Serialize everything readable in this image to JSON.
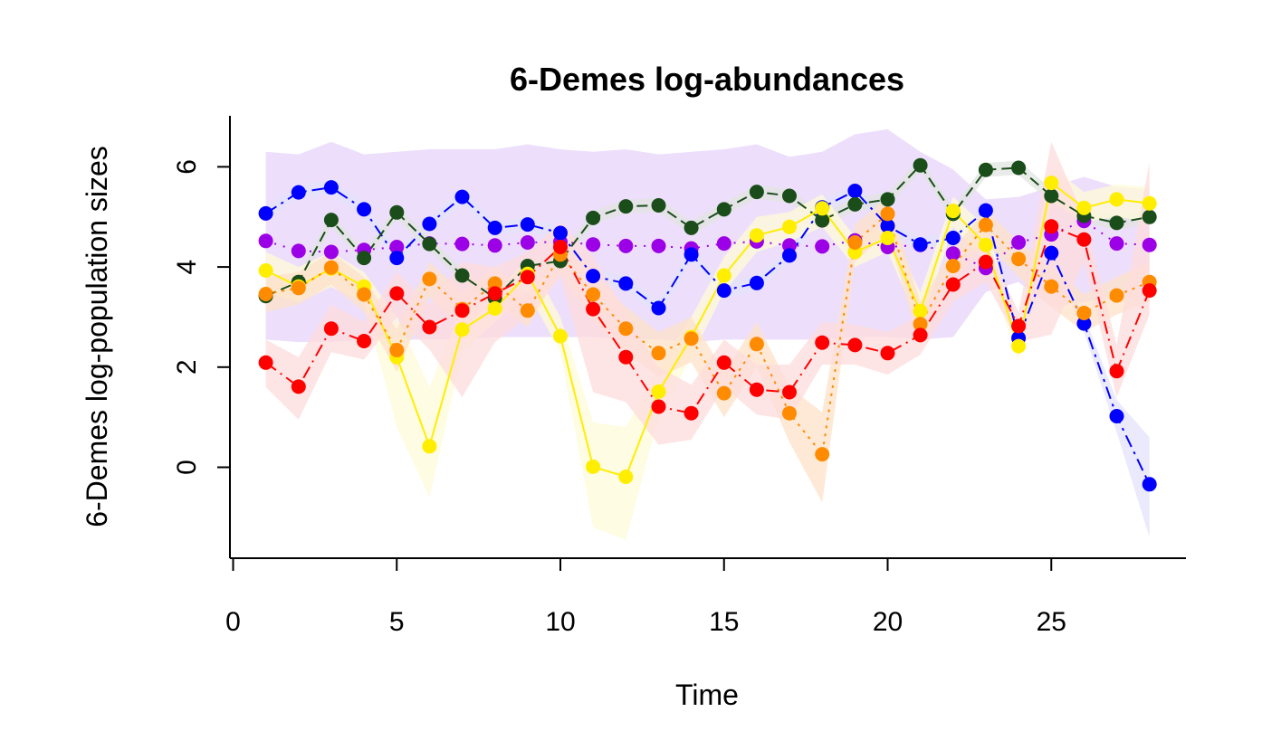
{
  "chart_data": {
    "type": "line",
    "title": "6-Demes log-abundances",
    "xlabel": "Time",
    "ylabel": "6-Demes log-population sizes",
    "xlim": [
      1,
      28
    ],
    "ylim": [
      -1.7,
      7.0
    ],
    "x_ticks": [
      0,
      5,
      10,
      15,
      20,
      25
    ],
    "y_ticks": [
      0,
      2,
      4,
      6
    ],
    "x": [
      1,
      2,
      3,
      4,
      5,
      6,
      7,
      8,
      9,
      10,
      11,
      12,
      13,
      14,
      15,
      16,
      17,
      18,
      19,
      20,
      21,
      22,
      23,
      24,
      25,
      26,
      27,
      28
    ],
    "series": [
      {
        "color": "#9b00e6",
        "band_color": "#e7d4fb",
        "dash": "2,8",
        "values": [
          4.52,
          4.32,
          4.3,
          4.34,
          4.4,
          4.47,
          4.46,
          4.43,
          4.49,
          4.5,
          4.45,
          4.42,
          4.42,
          4.37,
          4.47,
          4.51,
          4.43,
          4.41,
          4.53,
          4.4,
          4.44,
          4.27,
          3.98,
          4.49,
          4.65,
          4.92,
          4.47,
          4.44
        ],
        "lower": [
          2.55,
          2.5,
          2.5,
          2.55,
          2.55,
          2.55,
          2.55,
          2.6,
          2.6,
          2.6,
          2.6,
          2.55,
          2.55,
          2.5,
          2.55,
          2.55,
          2.55,
          2.55,
          2.6,
          2.6,
          2.55,
          2.6,
          3.5,
          3.7,
          3.2,
          3.3,
          3.4,
          3.3
        ],
        "upper": [
          6.3,
          6.25,
          6.5,
          6.25,
          6.3,
          6.35,
          6.35,
          6.35,
          6.45,
          6.35,
          6.3,
          6.35,
          6.25,
          6.3,
          6.35,
          6.45,
          6.2,
          6.3,
          6.65,
          6.75,
          6.3,
          5.95,
          5.35,
          5.4,
          5.6,
          5.8,
          5.6,
          5.55
        ]
      },
      {
        "color": "#0000ff",
        "band_color": "#e3e3fb",
        "dash": "14,6,3,6",
        "values": [
          5.07,
          5.49,
          5.59,
          5.15,
          4.18,
          4.86,
          5.4,
          4.78,
          4.85,
          4.68,
          3.82,
          3.67,
          3.18,
          4.25,
          3.53,
          3.68,
          4.23,
          5.19,
          5.52,
          4.82,
          4.45,
          4.58,
          5.13,
          2.58,
          4.28,
          2.87,
          1.02,
          -0.34
        ],
        "lower": [
          4.95,
          5.37,
          5.45,
          5.0,
          4.05,
          4.72,
          5.25,
          4.65,
          4.72,
          4.55,
          3.68,
          3.52,
          3.02,
          4.1,
          3.38,
          3.52,
          4.1,
          5.05,
          5.38,
          4.7,
          4.32,
          4.45,
          4.98,
          2.4,
          4.12,
          2.7,
          0.7,
          -1.4
        ],
        "upper": [
          5.2,
          5.62,
          5.73,
          5.3,
          4.32,
          5.0,
          5.55,
          4.92,
          4.98,
          4.82,
          3.96,
          3.82,
          3.34,
          4.4,
          3.68,
          3.84,
          4.36,
          5.33,
          5.66,
          4.96,
          4.58,
          4.72,
          5.28,
          2.76,
          4.44,
          3.04,
          1.34,
          0.6
        ]
      },
      {
        "color": "#1a4d1a",
        "band_color": "#e2e4e2",
        "dash": "12,6",
        "values": [
          3.42,
          3.7,
          4.94,
          4.18,
          5.09,
          4.46,
          3.83,
          3.38,
          4.02,
          4.12,
          4.98,
          5.21,
          5.23,
          4.78,
          5.15,
          5.5,
          5.42,
          4.93,
          5.25,
          5.35,
          6.03,
          5.06,
          5.94,
          5.98,
          5.42,
          5.02,
          4.88,
          5.0
        ],
        "lower": [
          3.28,
          3.56,
          4.8,
          4.04,
          4.95,
          4.32,
          3.69,
          3.24,
          3.88,
          3.98,
          4.84,
          5.07,
          5.09,
          4.64,
          5.01,
          5.36,
          5.28,
          4.79,
          5.11,
          5.21,
          5.89,
          4.92,
          5.8,
          5.84,
          5.28,
          4.88,
          4.74,
          4.86
        ],
        "upper": [
          3.56,
          3.84,
          5.08,
          4.32,
          5.23,
          4.6,
          3.97,
          3.52,
          4.16,
          4.26,
          5.12,
          5.35,
          5.37,
          4.92,
          5.29,
          5.64,
          5.56,
          5.07,
          5.39,
          5.49,
          6.17,
          5.2,
          6.08,
          6.12,
          5.56,
          5.16,
          5.02,
          5.14
        ]
      },
      {
        "color": "#ffee00",
        "band_color": "#fdfbd8",
        "dash": "none",
        "values": [
          3.93,
          3.61,
          3.97,
          3.61,
          2.2,
          0.42,
          2.75,
          3.17,
          3.86,
          2.62,
          0.01,
          -0.19,
          1.51,
          2.6,
          3.83,
          4.63,
          4.8,
          5.17,
          4.3,
          4.58,
          3.12,
          5.12,
          4.44,
          2.42,
          5.68,
          5.18,
          5.35,
          5.27
        ],
        "lower": [
          3.5,
          3.3,
          3.6,
          3.3,
          0.8,
          -0.6,
          2.3,
          2.9,
          3.5,
          2.3,
          -1.2,
          -1.45,
          1.0,
          2.2,
          3.5,
          4.3,
          4.5,
          4.8,
          4.0,
          4.3,
          2.8,
          4.8,
          4.1,
          2.1,
          5.3,
          4.9,
          5.0,
          4.9
        ],
        "upper": [
          4.3,
          4.0,
          4.3,
          3.9,
          3.0,
          1.6,
          3.2,
          3.45,
          4.2,
          3.0,
          0.9,
          0.8,
          2.0,
          3.0,
          4.2,
          5.0,
          5.1,
          5.45,
          4.6,
          4.85,
          3.5,
          5.4,
          4.8,
          2.8,
          6.0,
          5.5,
          5.65,
          5.6
        ]
      },
      {
        "color": "#ff8c00",
        "band_color": "#fde2c8",
        "dash": "3,6",
        "values": [
          3.46,
          3.58,
          3.99,
          3.45,
          2.34,
          3.76,
          3.16,
          3.67,
          3.13,
          4.25,
          3.45,
          2.77,
          2.28,
          2.57,
          1.48,
          2.46,
          1.08,
          0.26,
          4.49,
          5.06,
          2.86,
          4.02,
          4.84,
          4.16,
          3.61,
          3.08,
          3.43,
          3.7
        ],
        "lower": [
          3.1,
          3.25,
          3.65,
          3.1,
          1.9,
          3.4,
          2.8,
          3.3,
          2.8,
          3.9,
          2.9,
          2.3,
          1.8,
          2.1,
          1.0,
          2.0,
          0.5,
          -0.7,
          4.1,
          4.7,
          2.4,
          3.7,
          4.5,
          3.8,
          3.2,
          2.7,
          3.05,
          3.3
        ],
        "upper": [
          3.8,
          3.9,
          4.3,
          3.8,
          2.75,
          4.1,
          3.5,
          4.0,
          3.45,
          4.6,
          3.9,
          3.2,
          2.7,
          3.0,
          1.9,
          2.9,
          1.6,
          1.1,
          4.85,
          5.4,
          3.3,
          4.35,
          5.15,
          4.5,
          4.0,
          3.45,
          3.8,
          4.1
        ]
      },
      {
        "color": "#ff0000",
        "band_color": "#fddcdc",
        "dash": "14,6,2,6",
        "values": [
          2.09,
          1.61,
          2.77,
          2.52,
          3.47,
          2.8,
          3.13,
          3.47,
          3.8,
          4.4,
          3.16,
          2.2,
          1.21,
          1.08,
          2.09,
          1.55,
          1.5,
          2.49,
          2.44,
          2.28,
          2.64,
          3.65,
          4.1,
          2.82,
          4.81,
          4.55,
          1.92,
          3.53
        ],
        "lower": [
          1.6,
          0.95,
          2.3,
          2.15,
          3.0,
          2.35,
          1.4,
          2.5,
          3.0,
          3.8,
          1.5,
          1.3,
          0.45,
          0.55,
          1.6,
          1.05,
          0.95,
          2.05,
          2.05,
          1.85,
          2.25,
          3.3,
          3.7,
          2.5,
          2.65,
          4.1,
          1.4,
          3.05
        ],
        "upper": [
          2.55,
          2.2,
          3.25,
          2.9,
          3.9,
          3.25,
          4.1,
          4.0,
          4.3,
          4.9,
          4.2,
          3.1,
          2.0,
          1.65,
          2.55,
          2.05,
          2.05,
          2.9,
          2.85,
          2.7,
          3.05,
          4.0,
          4.5,
          3.1,
          6.5,
          5.0,
          2.45,
          6.1
        ]
      }
    ]
  }
}
